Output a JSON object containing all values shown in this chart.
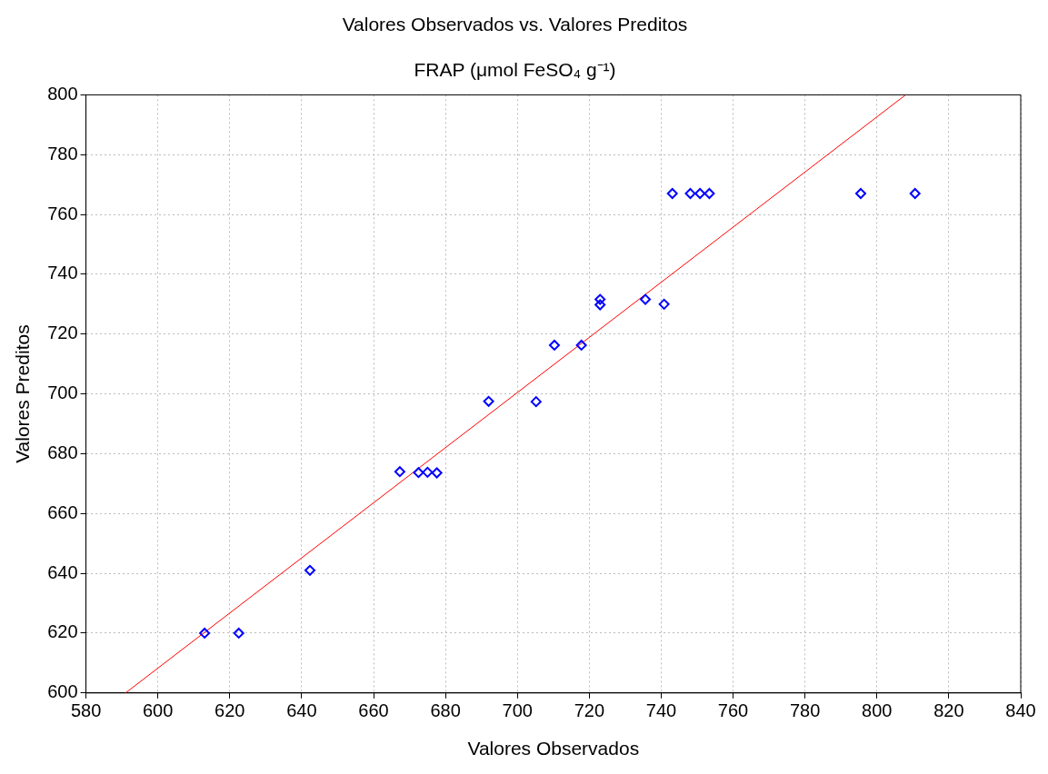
{
  "chart_data": {
    "type": "scatter",
    "title": "Valores Observados vs. Valores Preditos",
    "subtitle": "FRAP (μmol FeSO₄ g⁻¹)",
    "xlabel": "Valores Observados",
    "ylabel": "Valores Preditos",
    "xlim": [
      580,
      840
    ],
    "xticks": [
      580,
      600,
      620,
      640,
      660,
      680,
      700,
      720,
      740,
      760,
      780,
      800,
      820,
      840
    ],
    "ylim": [
      600,
      800
    ],
    "yticks": [
      600,
      620,
      640,
      660,
      680,
      700,
      720,
      740,
      760,
      780,
      800
    ],
    "grid": true,
    "legend": false,
    "marker": "diamond",
    "series": [
      {
        "type": "scatter",
        "color": "#0000ff",
        "x": [
          613,
          622.5,
          642.3,
          667.3,
          672.5,
          675,
          677.6,
          692,
          705.2,
          710.3,
          717.8,
          723,
          723,
          735.6,
          740.8,
          743.1,
          748.1,
          750.8,
          753.4,
          795.5,
          810.6
        ],
        "values": [
          620,
          620,
          641,
          674,
          673.7,
          673.8,
          673.6,
          697.5,
          697.4,
          716.3,
          716.3,
          731.6,
          729.8,
          731.6,
          730,
          767,
          767,
          767,
          767,
          767,
          767
        ]
      },
      {
        "type": "line",
        "color": "#ff0000",
        "marker": "none",
        "line_style": "solid",
        "x": [
          591,
          808
        ],
        "values": [
          600,
          800
        ]
      }
    ]
  }
}
